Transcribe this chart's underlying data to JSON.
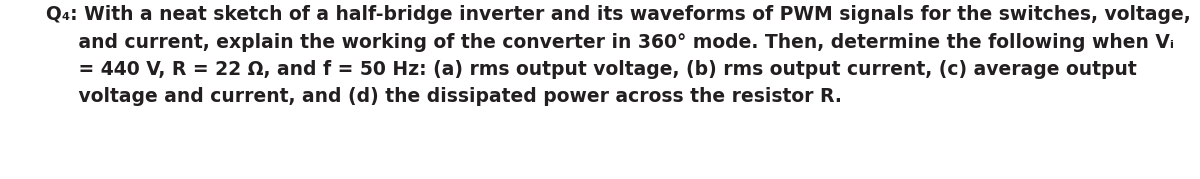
{
  "background_color": "#ffffff",
  "line1": "Q₄: With a neat sketch of a half-bridge inverter and its waveforms of PWM signals for the switches, voltage,",
  "line2": "     and current, explain the working of the converter in 360° mode. Then, determine the following when Vᵢ",
  "line3": "     = 440 V, R = 22 Ω, and f = 50 Hz: (a) rms output voltage, (b) rms output current, (c) average output",
  "line4": "     voltage and current, and (d) the dissipated power across the resistor R.",
  "fontsize": 13.5,
  "fontfamily": "DejaVu Sans",
  "color": "#231f20",
  "figsize": [
    12.0,
    1.79
  ],
  "dpi": 100
}
